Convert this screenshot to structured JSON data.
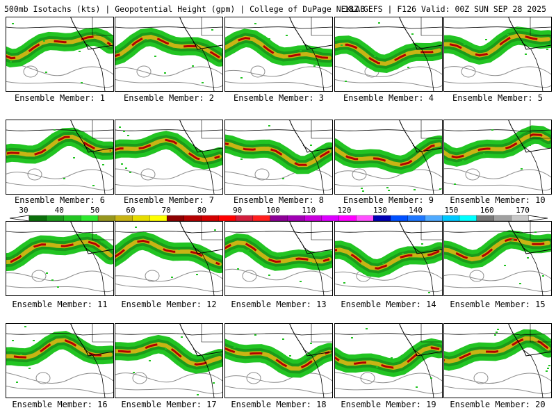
{
  "header": {
    "title_left": "500mb Isotachs (kts) | Geopotential Height (gpm) | College of DuPage NEXLAB",
    "title_right": "18Z GEFS | F126 Valid: 00Z SUN SEP 28 2025"
  },
  "panels": [
    {
      "label": "Ensemble Member: 1"
    },
    {
      "label": "Ensemble Member: 2"
    },
    {
      "label": "Ensemble Member: 3"
    },
    {
      "label": "Ensemble Member: 4"
    },
    {
      "label": "Ensemble Member: 5"
    },
    {
      "label": "Ensemble Member: 6"
    },
    {
      "label": "Ensemble Member: 7"
    },
    {
      "label": "Ensemble Member: 8"
    },
    {
      "label": "Ensemble Member: 9"
    },
    {
      "label": "Ensemble Member: 10"
    },
    {
      "label": "Ensemble Member: 11"
    },
    {
      "label": "Ensemble Member: 12"
    },
    {
      "label": "Ensemble Member: 13"
    },
    {
      "label": "Ensemble Member: 14"
    },
    {
      "label": "Ensemble Member: 15"
    },
    {
      "label": "Ensemble Member: 16"
    },
    {
      "label": "Ensemble Member: 17"
    },
    {
      "label": "Ensemble Member: 18"
    },
    {
      "label": "Ensemble Member: 19"
    },
    {
      "label": "Ensemble Member: 20"
    }
  ],
  "colorbar": {
    "labels": [
      "30",
      "40",
      "50",
      "60",
      "70",
      "80",
      "90",
      "100",
      "110",
      "120",
      "130",
      "140",
      "150",
      "160",
      "170"
    ],
    "colors": [
      "#0a6e0a",
      "#1a9a1a",
      "#22c422",
      "#2ee82e",
      "#96961e",
      "#c8b414",
      "#e6dc00",
      "#ffff00",
      "#8c0000",
      "#b40000",
      "#d20000",
      "#ff0000",
      "#d21e3c",
      "#ff1e1e",
      "#8c0096",
      "#a000b4",
      "#c800dc",
      "#dc00ff",
      "#ff00ff",
      "#ff50ff",
      "#0000b4",
      "#0050ff",
      "#1e78ff",
      "#50aaff",
      "#00c8ff",
      "#00ffff",
      "#787878",
      "#a0a0a0",
      "#c8c8c8"
    ],
    "label_color": "#000000"
  },
  "map_colors": {
    "jet_light": "#22c422",
    "jet_mid": "#1a9a1a",
    "jet_dark": "#0a6e0a",
    "jet_core_yellow": "#c8b414",
    "jet_core_red": "#b40000",
    "coastline": "#000000",
    "height_contour": "#8c8c8c"
  }
}
